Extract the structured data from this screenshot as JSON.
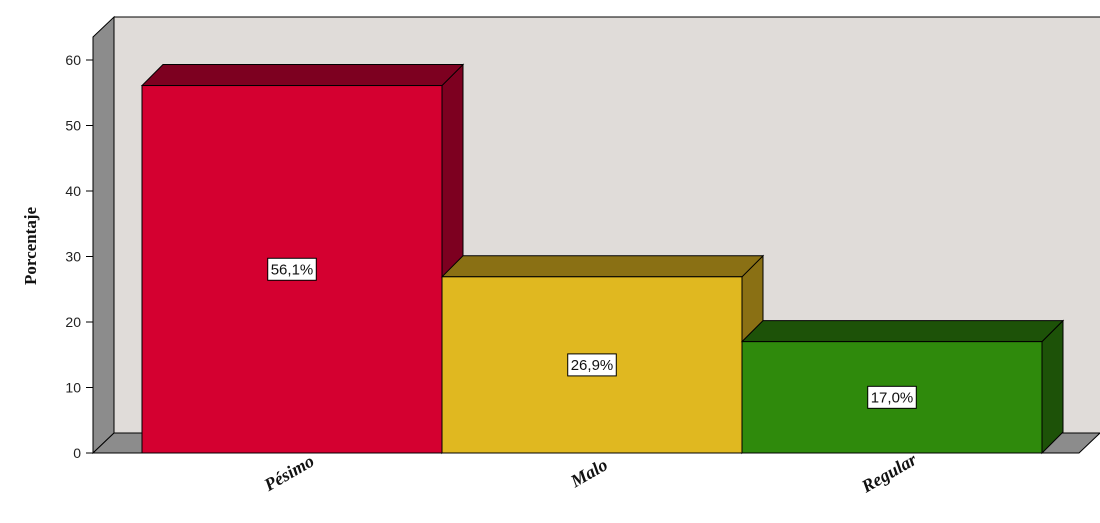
{
  "chart_data": {
    "type": "bar",
    "categories": [
      "Pésimo",
      "Malo",
      "Regular"
    ],
    "values": [
      56.1,
      26.9,
      17.0
    ],
    "data_labels": [
      "56,1%",
      "26,9%",
      "17,0%"
    ],
    "ylabel": "Porcentaje",
    "xlabel": "",
    "ylim": [
      0,
      60
    ],
    "yticks": [
      0,
      10,
      20,
      30,
      40,
      50,
      60
    ],
    "style": "3d",
    "grid": false,
    "colors": [
      "#d40030",
      "#e0b820",
      "#2f8a0c"
    ],
    "side_colors": [
      "#7d0020",
      "#8a7014",
      "#1d5208"
    ],
    "background_color": "#e0dcd9",
    "wall_color": "#8c8c8c"
  }
}
